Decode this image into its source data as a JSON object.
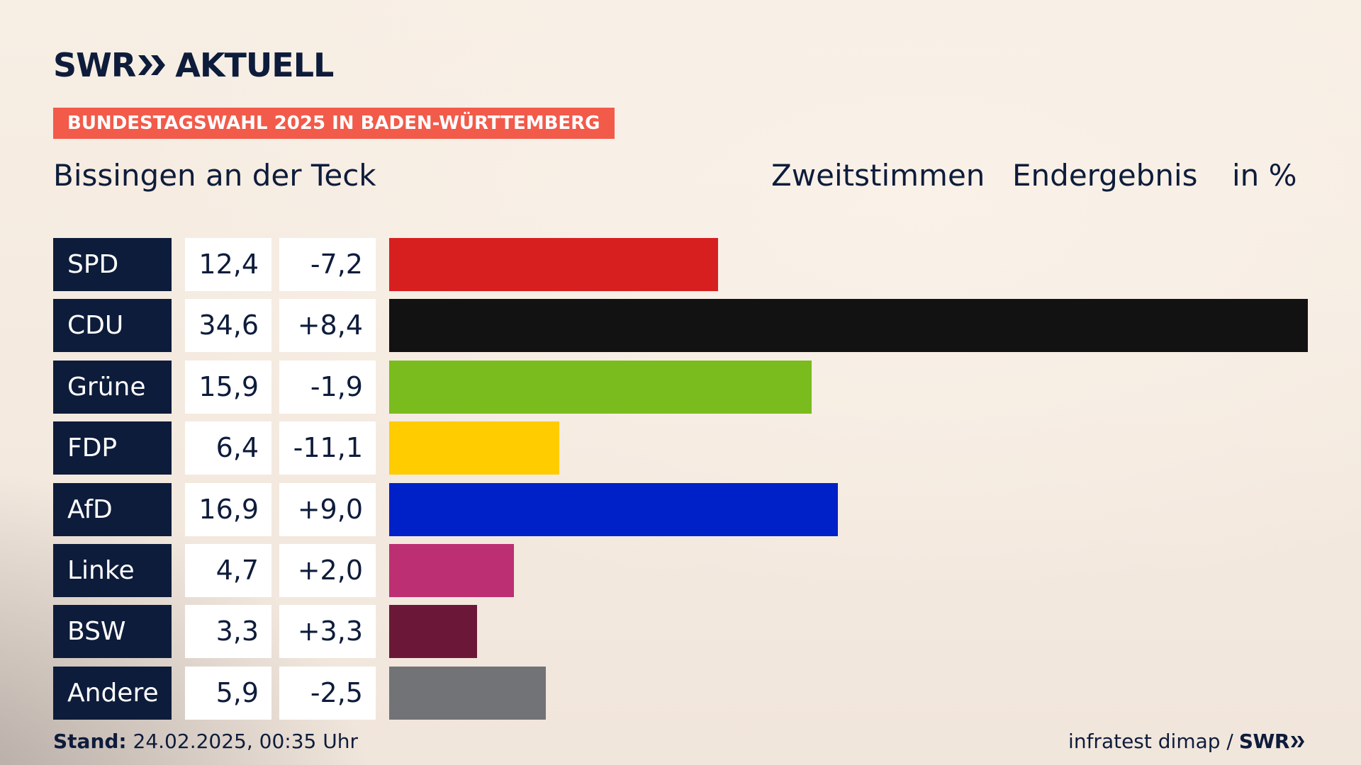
{
  "brand": {
    "logo_left": "SWR",
    "logo_right": "AKTUELL"
  },
  "tag": "BUNDESTAGSWAHL 2025 IN BADEN-WÜRTTEMBERG",
  "place": "Bissingen an der Teck",
  "headers": {
    "vote_type": "Zweitstimmen",
    "status": "Endergebnis",
    "unit": "in %"
  },
  "colors": {
    "navy": "#0e1c3b",
    "tag": "#f25a4a"
  },
  "chart_data": {
    "type": "bar",
    "orientation": "horizontal",
    "categories": [
      "SPD",
      "CDU",
      "Grüne",
      "FDP",
      "AfD",
      "Linke",
      "BSW",
      "Andere"
    ],
    "values": [
      12.4,
      34.6,
      15.9,
      6.4,
      16.9,
      4.7,
      3.3,
      5.9
    ],
    "value_labels": [
      "12,4",
      "34,6",
      "15,9",
      "6,4",
      "16,9",
      "4,7",
      "3,3",
      "5,9"
    ],
    "change_labels": [
      "-7,2",
      "+8,4",
      "-1,9",
      "-11,1",
      "+9,0",
      "+2,0",
      "+3,3",
      "-2,5"
    ],
    "changes": [
      -7.2,
      8.4,
      -1.9,
      -11.1,
      9.0,
      2.0,
      3.3,
      -2.5
    ],
    "bar_colors": [
      "#d81f20",
      "#121212",
      "#7abc1e",
      "#ffcc00",
      "#0020c8",
      "#bc2f72",
      "#6b1838",
      "#727377"
    ],
    "xlim": [
      0,
      34.6
    ],
    "grid": false,
    "legend": "none"
  },
  "footer": {
    "stand_label": "Stand:",
    "stand_value": "24.02.2025, 00:35 Uhr",
    "source": "infratest dimap /",
    "source_brand": "SWR"
  }
}
